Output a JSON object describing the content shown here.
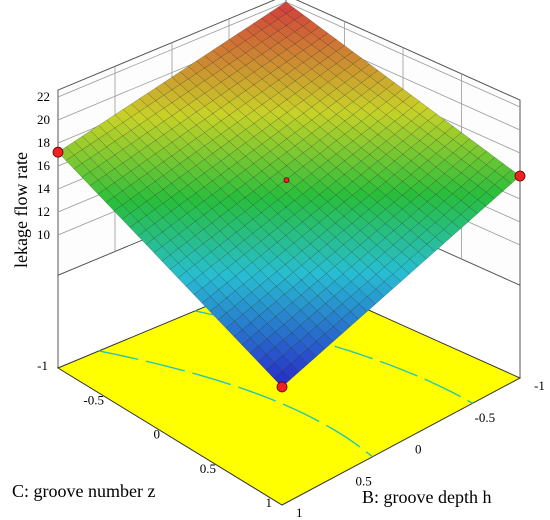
{
  "chart_data": {
    "type": "surface3d",
    "zlabel": "lekage flow rate",
    "xlabel": "B: groove depth h",
    "ylabel": "C: groove number z",
    "z_ticks": [
      "10",
      "12",
      "14",
      "16",
      "18",
      "20",
      "22"
    ],
    "x_ticks": [
      "-1",
      "-0.5",
      "0",
      "0.5",
      "1"
    ],
    "y_ticks": [
      "-1",
      "-0.5",
      "0",
      "0.5",
      "1"
    ],
    "corners": [
      {
        "B": -1,
        "C": -1,
        "z": 22.0
      },
      {
        "B": 1,
        "C": -1,
        "z": 16.0
      },
      {
        "B": -1,
        "C": 1,
        "z": 17.2
      },
      {
        "B": 1,
        "C": 1,
        "z": 8.7
      }
    ],
    "design_points": [
      {
        "B": -1,
        "C": 1,
        "z": 17.2
      },
      {
        "B": 1,
        "C": -1,
        "z": 16.0
      },
      {
        "B": 1,
        "C": 1,
        "z": 8.7
      },
      {
        "B": 0,
        "C": 0,
        "z": 15.9
      }
    ],
    "floor_contour_color": "#ffff00",
    "colors": {
      "low": "#2a2acc",
      "mid": "#22bb22",
      "high": "#cc3333"
    },
    "grid": true
  }
}
